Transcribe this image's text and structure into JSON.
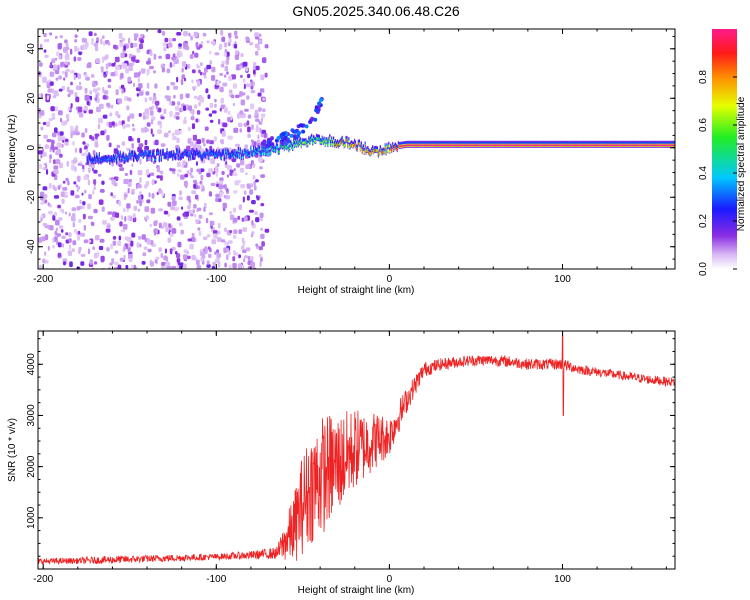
{
  "title": "GN05.2025.340.06.48.C26",
  "chart_data": [
    {
      "type": "heatmap",
      "name": "spectrogram",
      "xlabel": "Height of straight line (km)",
      "ylabel": "Frequency (Hz)",
      "xlim": [
        -203,
        165
      ],
      "ylim": [
        -49,
        48
      ],
      "xticks": [
        -200,
        -100,
        0,
        100
      ],
      "yticks": [
        -40,
        -20,
        0,
        20,
        40
      ],
      "colorbar": {
        "label": "Normalized spectral amplitude",
        "range": [
          0.0,
          1.0
        ],
        "ticks": [
          "0.0",
          "0.2",
          "0.4",
          "0.6",
          "0.8"
        ],
        "tick_values": [
          0.0,
          0.2,
          0.4,
          0.6,
          0.8
        ]
      },
      "signal_track": {
        "description_points_x": [
          -175,
          -150,
          -120,
          -95,
          -75,
          -60,
          -50,
          -40,
          -30,
          -20,
          -12,
          -5,
          0,
          10,
          40,
          80,
          120,
          165
        ],
        "frequency_hz": [
          -5,
          -4,
          -3,
          -3,
          -2,
          0,
          2,
          3,
          2,
          1,
          -1,
          -2,
          0,
          1,
          1,
          1,
          1,
          1
        ],
        "amplitude": [
          0.3,
          0.35,
          0.3,
          0.35,
          0.45,
          0.55,
          0.6,
          0.55,
          0.85,
          0.9,
          0.95,
          0.9,
          0.95,
          1.0,
          1.0,
          1.0,
          1.0,
          1.0
        ]
      },
      "noise_region_x": [
        -203,
        -72
      ],
      "secondary_branch": {
        "x": [
          -75,
          -60,
          -50,
          -44,
          -40
        ],
        "frequency_hz": [
          2,
          5,
          9,
          14,
          20
        ]
      }
    },
    {
      "type": "line",
      "name": "snr",
      "xlabel": "Height of straight line (km)",
      "ylabel": "SNR (10 * v/v)",
      "xlim": [
        -203,
        165
      ],
      "ylim": [
        0,
        4650
      ],
      "xticks": [
        -200,
        -100,
        0,
        100
      ],
      "yticks": [
        1000,
        2000,
        3000,
        4000
      ],
      "color": "#ee2222",
      "x": [
        -203,
        -180,
        -160,
        -140,
        -120,
        -100,
        -80,
        -65,
        -55,
        -50,
        -45,
        -40,
        -35,
        -30,
        -25,
        -20,
        -15,
        -10,
        -5,
        0,
        10,
        20,
        30,
        40,
        50,
        60,
        70,
        80,
        90,
        100,
        110,
        120,
        130,
        140,
        150,
        165
      ],
      "y": [
        150,
        160,
        180,
        200,
        220,
        240,
        270,
        310,
        800,
        1300,
        1600,
        1800,
        1950,
        2050,
        2200,
        2350,
        2400,
        2500,
        2550,
        2600,
        3300,
        3900,
        4000,
        4050,
        4080,
        4080,
        4050,
        4000,
        4000,
        4000,
        3900,
        3850,
        3800,
        3750,
        3700,
        3650
      ],
      "noise_amplitude": [
        60,
        60,
        80,
        70,
        70,
        60,
        80,
        120,
        700,
        1000,
        1100,
        1200,
        1100,
        1000,
        900,
        800,
        700,
        600,
        500,
        400,
        250,
        150,
        120,
        110,
        110,
        110,
        110,
        110,
        110,
        110,
        100,
        90,
        90,
        90,
        90,
        90
      ],
      "annotations": [
        {
          "x": 100,
          "y": 4650,
          "note": "spike"
        },
        {
          "x": 100,
          "y": 3000,
          "note": "dip"
        }
      ]
    }
  ]
}
